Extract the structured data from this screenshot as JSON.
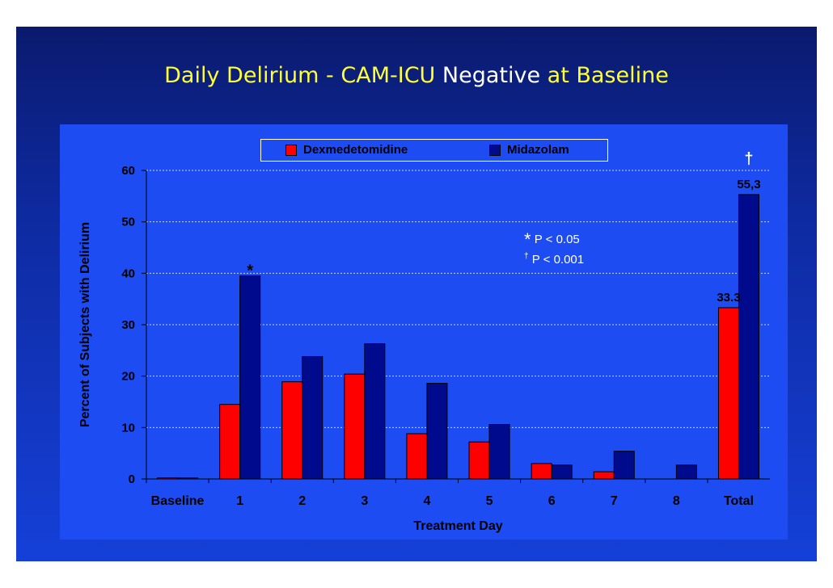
{
  "slide": {
    "title_parts": [
      "Daily Delirium - CAM-ICU ",
      "Negative",
      " at Baseline"
    ]
  },
  "colors": {
    "dexmedetomidine": "#ff0000",
    "midazolam": "#000a8c",
    "title_highlight": "#ffff33",
    "plot_background": "#1c4cf2"
  },
  "notes": [
    {
      "symbol": "*",
      "text": "P < 0.05"
    },
    {
      "symbol": "†",
      "text": "P < 0.001"
    }
  ],
  "chart_data": {
    "type": "bar",
    "title": "Daily Delirium - CAM-ICU Negative at Baseline",
    "xlabel": "Treatment Day",
    "ylabel": "Percent of Subjects with Delirium",
    "categories": [
      "Baseline",
      "1",
      "2",
      "3",
      "4",
      "5",
      "6",
      "7",
      "8",
      "Total"
    ],
    "series": [
      {
        "name": "Dexmedetomidine",
        "values": [
          0.2,
          14.5,
          18.9,
          20.4,
          8.8,
          7.2,
          3.0,
          1.4,
          0,
          33.3
        ]
      },
      {
        "name": "Midazolam",
        "values": [
          0.2,
          39.5,
          23.8,
          26.3,
          18.6,
          10.6,
          2.7,
          5.4,
          2.7,
          55.3
        ]
      }
    ],
    "ylim": [
      0,
      60
    ],
    "yticks": [
      0,
      10,
      20,
      30,
      40,
      50,
      60
    ],
    "grid": true,
    "legend": "top",
    "annotations": [
      {
        "text": "*",
        "category": "1",
        "series": "Midazolam"
      },
      {
        "text": "33.3",
        "category": "Total",
        "series": "Dexmedetomidine"
      },
      {
        "text": "55,3",
        "category": "Total",
        "series": "Midazolam"
      },
      {
        "text": "†",
        "category": "Total",
        "series": "Midazolam"
      }
    ]
  }
}
